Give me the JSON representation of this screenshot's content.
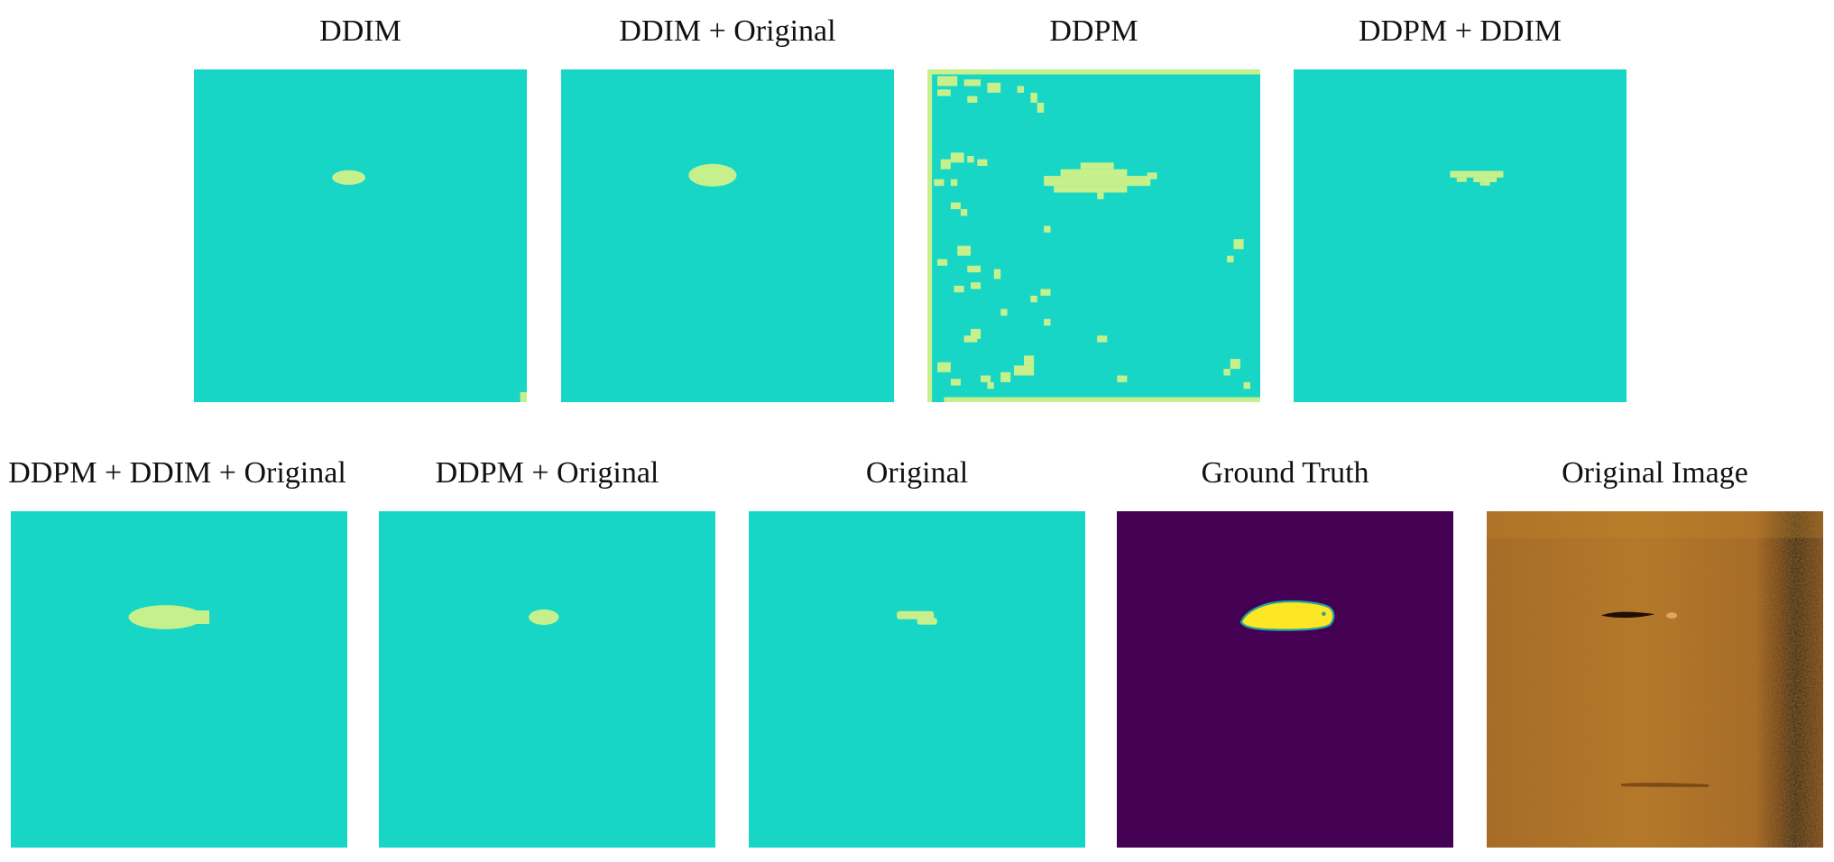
{
  "panels": [
    {
      "title": "DDIM"
    },
    {
      "title": "DDIM + Original"
    },
    {
      "title": "DDPM"
    },
    {
      "title": "DDPM + DDIM"
    },
    {
      "title": "DDPM + DDIM + Original"
    },
    {
      "title": "DDPM + Original"
    },
    {
      "title": "Original"
    },
    {
      "title": "Ground Truth"
    },
    {
      "title": "Original Image"
    }
  ],
  "colors": {
    "background_mask": "#17d6c6",
    "foreground_mask": "#c6f08c",
    "gt_background": "#440154",
    "gt_foreground": "#fde725",
    "gt_edge": "#21a5a0",
    "sonar_base": "#b8741a",
    "sonar_dark": "#2a1406"
  }
}
